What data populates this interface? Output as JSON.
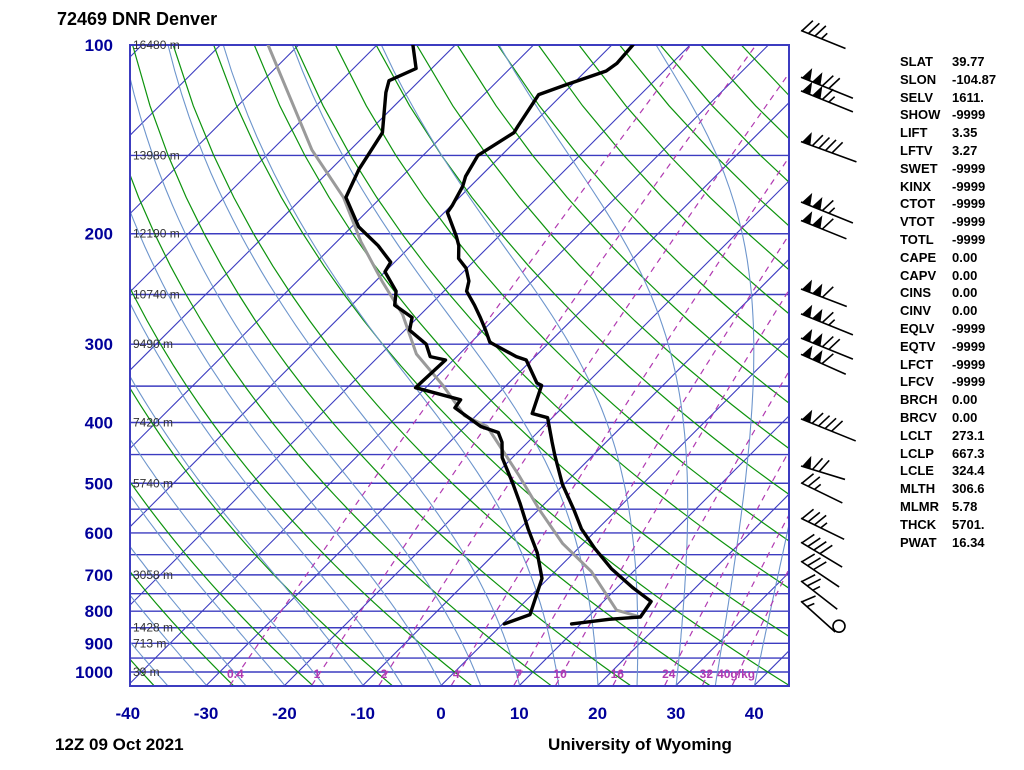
{
  "header": {
    "title": "72469 DNR Denver"
  },
  "footer": {
    "datetime": "12Z 09 Oct 2021",
    "credit": "University of Wyoming"
  },
  "colors": {
    "grid_blue": "#3c3cc0",
    "axis_text": "#00009a",
    "dry_adiabat": "#0d930d",
    "moist_adiabat": "#6d95cc",
    "mixing_ratio": "#b13ab1",
    "height_text": "#333333",
    "profile": "#000000",
    "parcel": "#9a9a9a",
    "barb": "#000000"
  },
  "indices": {
    "rows": [
      {
        "name": "SLAT",
        "value": "39.77"
      },
      {
        "name": "SLON",
        "value": "-104.87"
      },
      {
        "name": "SELV",
        "value": "1611."
      },
      {
        "name": "SHOW",
        "value": "-9999"
      },
      {
        "name": "LIFT",
        "value": "3.35"
      },
      {
        "name": "LFTV",
        "value": "3.27"
      },
      {
        "name": "SWET",
        "value": "-9999"
      },
      {
        "name": "KINX",
        "value": "-9999"
      },
      {
        "name": "CTOT",
        "value": "-9999"
      },
      {
        "name": "VTOT",
        "value": "-9999"
      },
      {
        "name": "TOTL",
        "value": "-9999"
      },
      {
        "name": "CAPE",
        "value": "0.00"
      },
      {
        "name": "CAPV",
        "value": "0.00"
      },
      {
        "name": "CINS",
        "value": "0.00"
      },
      {
        "name": "CINV",
        "value": "0.00"
      },
      {
        "name": "EQLV",
        "value": "-9999"
      },
      {
        "name": "EQTV",
        "value": "-9999"
      },
      {
        "name": "LFCT",
        "value": "-9999"
      },
      {
        "name": "LFCV",
        "value": "-9999"
      },
      {
        "name": "BRCH",
        "value": "0.00"
      },
      {
        "name": "BRCV",
        "value": "0.00"
      },
      {
        "name": "LCLT",
        "value": "273.1"
      },
      {
        "name": "LCLP",
        "value": "667.3"
      },
      {
        "name": "LCLE",
        "value": "324.4"
      },
      {
        "name": "MLTH",
        "value": "306.6"
      },
      {
        "name": "MLMR",
        "value": "5.78"
      },
      {
        "name": "THCK",
        "value": "5701."
      },
      {
        "name": "PWAT",
        "value": "16.34"
      }
    ]
  },
  "chart_data": {
    "type": "skewt-log-p",
    "title": "72469 DNR Denver",
    "valid": "12Z 09 Oct 2021",
    "credit": "University of Wyoming",
    "pressure_axis_hpa": [
      100,
      200,
      300,
      400,
      500,
      600,
      700,
      800,
      900,
      1000
    ],
    "isobar_lines_hpa": [
      100,
      150,
      200,
      250,
      300,
      350,
      400,
      450,
      500,
      550,
      600,
      650,
      700,
      750,
      800,
      850,
      900,
      950,
      1000
    ],
    "pressure_range_hpa": [
      100,
      1050
    ],
    "temp_axis_c": [
      -40,
      -30,
      -20,
      -10,
      0,
      10,
      20,
      30,
      40
    ],
    "isotherms_c": {
      "min": -120,
      "max": 40,
      "step": 10
    },
    "dry_adiabats_c": {
      "min": -40,
      "max": 170,
      "step": 10
    },
    "moist_adiabats_c": {
      "min": -40,
      "max": 40,
      "step": 5
    },
    "height_labels": [
      {
        "hpa": 100,
        "label": "16480 m"
      },
      {
        "hpa": 150,
        "label": "13980 m"
      },
      {
        "hpa": 200,
        "label": "12190 m"
      },
      {
        "hpa": 250,
        "label": "10740 m"
      },
      {
        "hpa": 300,
        "label": "9490 m"
      },
      {
        "hpa": 400,
        "label": "7420 m"
      },
      {
        "hpa": 500,
        "label": "5740 m"
      },
      {
        "hpa": 700,
        "label": "3058 m"
      },
      {
        "hpa": 850,
        "label": "1428 m"
      },
      {
        "hpa": 900,
        "label": "713 m"
      },
      {
        "hpa": 1000,
        "label": "39 m"
      }
    ],
    "mixing_ratio_lines": [
      {
        "gkg": 0.4,
        "label": "0.4"
      },
      {
        "gkg": 1,
        "label": "1"
      },
      {
        "gkg": 2,
        "label": "2"
      },
      {
        "gkg": 4,
        "label": "4"
      },
      {
        "gkg": 7,
        "label": "7"
      },
      {
        "gkg": 10,
        "label": "10"
      },
      {
        "gkg": 16,
        "label": "16"
      },
      {
        "gkg": 24,
        "label": "24"
      },
      {
        "gkg": 32,
        "label": "32"
      },
      {
        "gkg": 40,
        "label": "40g/kg"
      }
    ],
    "profiles": {
      "temperature_p_t": [
        [
          838,
          8.8
        ],
        [
          824,
          13.0
        ],
        [
          817,
          16.7
        ],
        [
          772,
          16.1
        ],
        [
          733,
          11.9
        ],
        [
          684,
          6.8
        ],
        [
          635,
          2.1
        ],
        [
          591,
          -2.1
        ],
        [
          552,
          -5.4
        ],
        [
          502,
          -10.2
        ],
        [
          451,
          -14.9
        ],
        [
          430,
          -16.9
        ],
        [
          393,
          -20.6
        ],
        [
          387,
          -23.1
        ],
        [
          349,
          -25.5
        ],
        [
          346,
          -26.4
        ],
        [
          318,
          -30.7
        ],
        [
          314,
          -32.4
        ],
        [
          298,
          -37.6
        ],
        [
          285,
          -39.7
        ],
        [
          272,
          -42.0
        ],
        [
          260,
          -44.3
        ],
        [
          247,
          -47.1
        ],
        [
          238,
          -48.1
        ],
        [
          227,
          -50.1
        ],
        [
          219,
          -52.3
        ],
        [
          209,
          -53.9
        ],
        [
          202,
          -55.4
        ],
        [
          185,
          -59.6
        ],
        [
          180,
          -59.9
        ],
        [
          168,
          -61.0
        ],
        [
          162,
          -61.9
        ],
        [
          150,
          -63.0
        ],
        [
          138,
          -61.3
        ],
        [
          135,
          -61.6
        ],
        [
          120,
          -63.0
        ],
        [
          116,
          -60.9
        ],
        [
          110,
          -57.4
        ],
        [
          107,
          -57.0
        ],
        [
          100,
          -57.3
        ]
      ],
      "dewpoint_p_t": [
        [
          838,
          0.2
        ],
        [
          810,
          2.3
        ],
        [
          709,
          -0.8
        ],
        [
          645,
          -4.7
        ],
        [
          591,
          -8.9
        ],
        [
          538,
          -13.2
        ],
        [
          502,
          -16.5
        ],
        [
          455,
          -21.3
        ],
        [
          430,
          -23.3
        ],
        [
          415,
          -25.0
        ],
        [
          406,
          -28.0
        ],
        [
          379,
          -33.7
        ],
        [
          368,
          -34.0
        ],
        [
          352,
          -41.3
        ],
        [
          318,
          -41.0
        ],
        [
          314,
          -43.4
        ],
        [
          300,
          -45.5
        ],
        [
          285,
          -49.4
        ],
        [
          272,
          -50.7
        ],
        [
          260,
          -54.5
        ],
        [
          247,
          -56.1
        ],
        [
          230,
          -60.0
        ],
        [
          222,
          -60.5
        ],
        [
          209,
          -64.2
        ],
        [
          195,
          -69.1
        ],
        [
          175,
          -74.5
        ],
        [
          158,
          -76.4
        ],
        [
          138,
          -78.1
        ],
        [
          119,
          -82.8
        ],
        [
          114,
          -83.9
        ],
        [
          109,
          -82.0
        ],
        [
          100,
          -85.4
        ]
      ],
      "parcel_p_t": [
        [
          817,
          16.7
        ],
        [
          797,
          12.8
        ],
        [
          691,
          4.6
        ],
        [
          624,
          -2.6
        ],
        [
          552,
          -9.8
        ],
        [
          484,
          -17.1
        ],
        [
          406,
          -27.2
        ],
        [
          390,
          -31.5
        ],
        [
          349,
          -38.1
        ],
        [
          311,
          -45.5
        ],
        [
          269,
          -52.3
        ],
        [
          238,
          -59.2
        ],
        [
          206,
          -66.9
        ],
        [
          175,
          -74.8
        ],
        [
          147,
          -84.9
        ],
        [
          100,
          -103.9
        ]
      ]
    },
    "wind_barbs": [
      {
        "hpa": 98,
        "flags": 0,
        "full": 3,
        "half": 1,
        "ang": 22
      },
      {
        "hpa": 117,
        "flags": 2,
        "full": 2,
        "half": 0,
        "ang": 22
      },
      {
        "hpa": 123,
        "flags": 2,
        "full": 1,
        "half": 1,
        "ang": 22
      },
      {
        "hpa": 148,
        "flags": 1,
        "full": 4,
        "half": 0,
        "ang": 20
      },
      {
        "hpa": 185,
        "flags": 2,
        "full": 1,
        "half": 1,
        "ang": 22
      },
      {
        "hpa": 197,
        "flags": 2,
        "full": 1,
        "half": 0,
        "ang": 22
      },
      {
        "hpa": 253,
        "flags": 2,
        "full": 1,
        "half": 0,
        "ang": 21
      },
      {
        "hpa": 279,
        "flags": 2,
        "full": 1,
        "half": 1,
        "ang": 22
      },
      {
        "hpa": 305,
        "flags": 2,
        "full": 2,
        "half": 0,
        "ang": 22
      },
      {
        "hpa": 323,
        "flags": 2,
        "full": 1,
        "half": 0,
        "ang": 24
      },
      {
        "hpa": 411,
        "flags": 1,
        "full": 4,
        "half": 0,
        "ang": 22
      },
      {
        "hpa": 481,
        "flags": 1,
        "full": 2,
        "half": 0,
        "ang": 17
      },
      {
        "hpa": 518,
        "flags": 0,
        "full": 2,
        "half": 1,
        "ang": 26
      },
      {
        "hpa": 591,
        "flags": 0,
        "full": 3,
        "half": 1,
        "ang": 26
      },
      {
        "hpa": 650,
        "flags": 0,
        "full": 4,
        "half": 0,
        "ang": 31
      },
      {
        "hpa": 698,
        "flags": 0,
        "full": 3,
        "half": 0,
        "ang": 34
      },
      {
        "hpa": 754,
        "flags": 0,
        "full": 2,
        "half": 1,
        "ang": 38
      },
      {
        "hpa": 816,
        "flags": 0,
        "full": 1,
        "half": 1,
        "ang": 42
      }
    ],
    "calm_circle_hpa": 845
  }
}
